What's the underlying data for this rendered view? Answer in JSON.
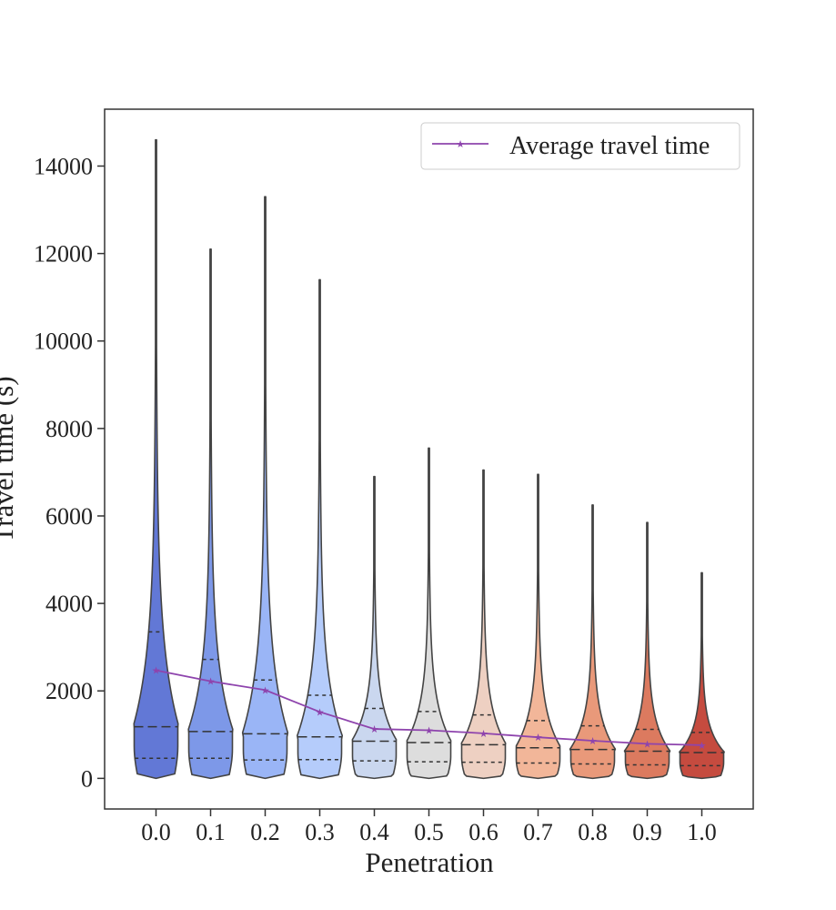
{
  "chart_data": {
    "type": "violin",
    "xlabel": "Penetration",
    "ylabel": "Travel time (s)",
    "categories": [
      "0.0",
      "0.1",
      "0.2",
      "0.3",
      "0.4",
      "0.5",
      "0.6",
      "0.7",
      "0.8",
      "0.9",
      "1.0"
    ],
    "ylim": [
      -700,
      15300
    ],
    "yticks": [
      0,
      2000,
      4000,
      6000,
      8000,
      10000,
      12000,
      14000
    ],
    "grid": false,
    "legend": {
      "position": "top-right",
      "entries": [
        "Average travel time"
      ]
    },
    "colors": [
      "#6278d6",
      "#7d98e8",
      "#9ab5f6",
      "#b5ccfb",
      "#cad7ef",
      "#dddddd",
      "#eed0c2",
      "#f2b699",
      "#e9997a",
      "#dc7a5f",
      "#c54b3f"
    ],
    "line_color": "#8e44ad",
    "violins": [
      {
        "max": 14600,
        "q1": 460,
        "median": 1180,
        "q3": 3350
      },
      {
        "max": 12100,
        "q1": 460,
        "median": 1070,
        "q3": 2720
      },
      {
        "max": 13300,
        "q1": 420,
        "median": 1020,
        "q3": 2250
      },
      {
        "max": 11400,
        "q1": 430,
        "median": 950,
        "q3": 1900
      },
      {
        "max": 6900,
        "q1": 400,
        "median": 850,
        "q3": 1600
      },
      {
        "max": 7550,
        "q1": 380,
        "median": 820,
        "q3": 1530
      },
      {
        "max": 7050,
        "q1": 370,
        "median": 770,
        "q3": 1450
      },
      {
        "max": 6950,
        "q1": 350,
        "median": 700,
        "q3": 1320
      },
      {
        "max": 6250,
        "q1": 330,
        "median": 660,
        "q3": 1200
      },
      {
        "max": 5850,
        "q1": 310,
        "median": 620,
        "q3": 1120
      },
      {
        "max": 4700,
        "q1": 290,
        "median": 590,
        "q3": 1050
      }
    ],
    "series": [
      {
        "name": "Average travel time",
        "values": [
          2470,
          2220,
          2020,
          1520,
          1130,
          1100,
          1030,
          940,
          860,
          790,
          760
        ]
      }
    ]
  }
}
